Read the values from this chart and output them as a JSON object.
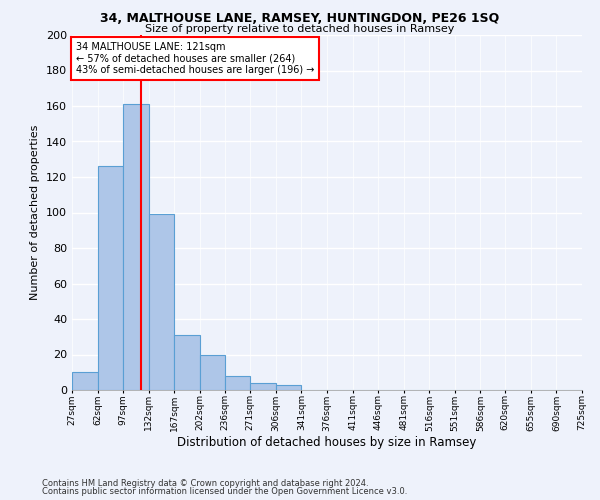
{
  "title1": "34, MALTHOUSE LANE, RAMSEY, HUNTINGDON, PE26 1SQ",
  "title2": "Size of property relative to detached houses in Ramsey",
  "xlabel": "Distribution of detached houses by size in Ramsey",
  "ylabel": "Number of detached properties",
  "footnote1": "Contains HM Land Registry data © Crown copyright and database right 2024.",
  "footnote2": "Contains public sector information licensed under the Open Government Licence v3.0.",
  "bin_labels": [
    "27sqm",
    "62sqm",
    "97sqm",
    "132sqm",
    "167sqm",
    "202sqm",
    "236sqm",
    "271sqm",
    "306sqm",
    "341sqm",
    "376sqm",
    "411sqm",
    "446sqm",
    "481sqm",
    "516sqm",
    "551sqm",
    "586sqm",
    "620sqm",
    "655sqm",
    "690sqm",
    "725sqm"
  ],
  "bar_heights": [
    10,
    126,
    161,
    99,
    31,
    20,
    8,
    4,
    3,
    0,
    0,
    0,
    0,
    0,
    0,
    0,
    0,
    0,
    0,
    0
  ],
  "bar_color": "#aec6e8",
  "bar_edge_color": "#5a9fd4",
  "vline_color": "red",
  "bin_edges": [
    27,
    62,
    97,
    132,
    167,
    202,
    236,
    271,
    306,
    341,
    376,
    411,
    446,
    481,
    516,
    551,
    586,
    620,
    655,
    690,
    725
  ],
  "ylim": [
    0,
    200
  ],
  "annotation_text": "34 MALTHOUSE LANE: 121sqm\n← 57% of detached houses are smaller (264)\n43% of semi-detached houses are larger (196) →",
  "annotation_box_color": "white",
  "annotation_box_edgecolor": "red",
  "bg_color": "#eef2fb",
  "grid_color": "white",
  "vline_pos": 121
}
